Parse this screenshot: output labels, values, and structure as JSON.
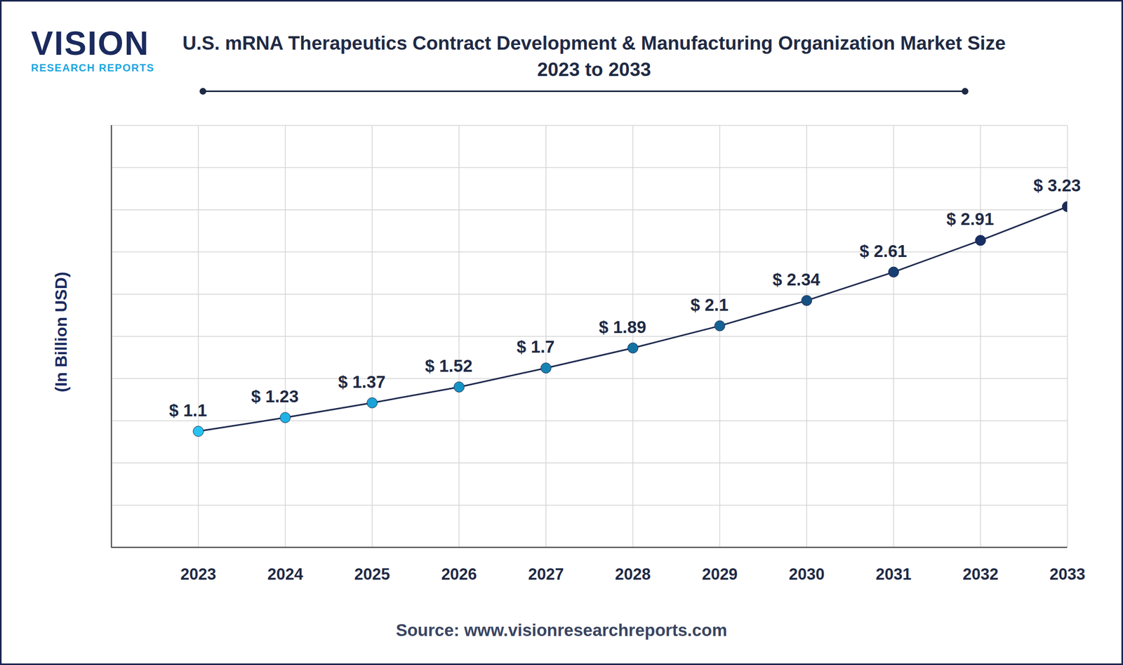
{
  "chart_data": {
    "type": "line",
    "title": "U.S. mRNA Therapeutics Contract Development & Manufacturing Organization Market Size 2023 to 2033",
    "logo": {
      "name": "VISION",
      "tagline": "RESEARCH REPORTS"
    },
    "y_label": "(In Billion USD)",
    "source": "Source: www.visionresearchreports.com",
    "x": [
      2023,
      2024,
      2025,
      2026,
      2027,
      2028,
      2029,
      2030,
      2031,
      2032,
      2033
    ],
    "values": [
      1.1,
      1.23,
      1.37,
      1.52,
      1.7,
      1.89,
      2.1,
      2.34,
      2.61,
      2.91,
      3.23
    ],
    "value_labels": [
      "$ 1.1",
      "$ 1.23",
      "$ 1.37",
      "$ 1.52",
      "$ 1.7",
      "$ 1.89",
      "$ 2.1",
      "$ 2.34",
      "$ 2.61",
      "$ 2.91",
      "$ 3.23"
    ],
    "xlim": [
      2022,
      2033
    ],
    "xticks": [
      2023,
      2024,
      2025,
      2026,
      2027,
      2028,
      2029,
      2030,
      2031,
      2032,
      2033
    ],
    "ylim": [
      0,
      4
    ],
    "yticks": [
      0,
      0.4,
      0.8,
      1.2,
      1.6,
      2,
      2.4,
      2.8,
      3.2,
      3.6,
      4
    ],
    "grid": true,
    "tick_labels": "x",
    "data_labels": true,
    "color": "#1f2a4f",
    "colors": [
      "#29c3f0",
      "#1eb3e6",
      "#19a3d6",
      "#1693c5",
      "#1483b3",
      "#1473a3",
      "#146293",
      "#165082",
      "#173e72",
      "#172f63",
      "#1c2a55"
    ],
    "marker": "circle",
    "line_style": "solid"
  }
}
